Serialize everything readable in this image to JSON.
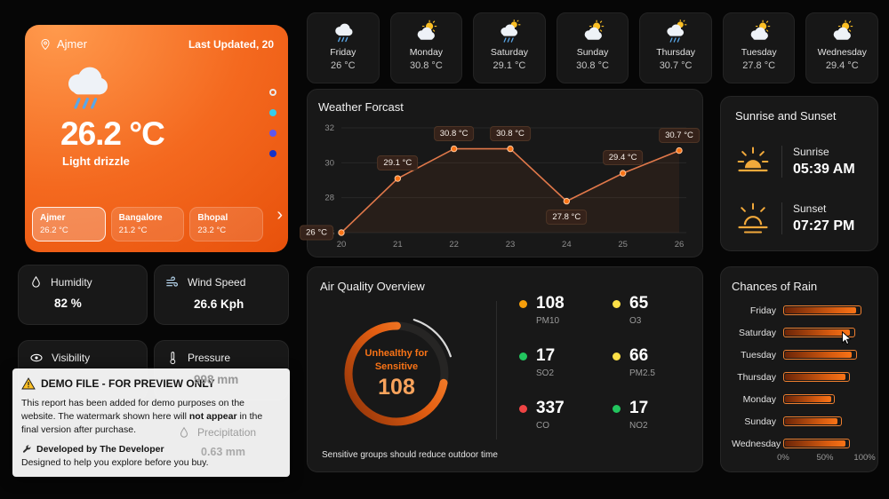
{
  "current": {
    "location": "Ajmer",
    "last_updated": "Last Updated, 20",
    "temperature": "26.2 °C",
    "condition": "Light drizzle",
    "chevron": "›",
    "cities": [
      {
        "name": "Ajmer",
        "temp": "26.2 °C"
      },
      {
        "name": "Bangalore",
        "temp": "21.2 °C"
      },
      {
        "name": "Bhopal",
        "temp": "23.2 °C"
      }
    ],
    "page_dots": [
      {
        "color": "transparent"
      },
      {
        "color": "#35cde9"
      },
      {
        "color": "#5f57ef"
      },
      {
        "color": "#1432c8"
      }
    ]
  },
  "stats": {
    "humidity": {
      "label": "Humidity",
      "value": "82 %"
    },
    "wind": {
      "label": "Wind Speed",
      "value": "26.6 Kph"
    },
    "visibility": {
      "label": "Visibility"
    },
    "pressure": {
      "label": "Pressure",
      "value": "998 mm"
    },
    "precipitation": {
      "label": "Precipitation",
      "value": "0.63 mm"
    }
  },
  "forecast_days": [
    {
      "day": "Friday",
      "temp": "26 °C",
      "icon": "rain"
    },
    {
      "day": "Monday",
      "temp": "30.8 °C",
      "icon": "partly"
    },
    {
      "day": "Saturday",
      "temp": "29.1 °C",
      "icon": "partly-rain"
    },
    {
      "day": "Sunday",
      "temp": "30.8 °C",
      "icon": "partly"
    },
    {
      "day": "Thursday",
      "temp": "30.7 °C",
      "icon": "partly-rain"
    },
    {
      "day": "Tuesday",
      "temp": "27.8 °C",
      "icon": "partly"
    },
    {
      "day": "Wednesday",
      "temp": "29.4 °C",
      "icon": "partly"
    }
  ],
  "chart_data": [
    {
      "type": "line",
      "title": "Weather Forcast",
      "x": [
        "20",
        "21",
        "22",
        "23",
        "24",
        "25",
        "26"
      ],
      "values": [
        26,
        29.1,
        30.8,
        30.8,
        27.8,
        29.4,
        30.7
      ],
      "point_labels": [
        "26 °C",
        "29.1 °C",
        "30.8 °C",
        "30.8 °C",
        "27.8 °C",
        "29.4 °C",
        "30.7 °C"
      ],
      "label_pos": [
        "left",
        "above",
        "above",
        "above",
        "below",
        "above",
        "above"
      ],
      "ylim": [
        26,
        32
      ],
      "yticks": [
        26,
        28,
        30,
        32
      ],
      "grid": true,
      "line_color": "#e0784a"
    },
    {
      "type": "bar",
      "title": "Chances of Rain",
      "orientation": "horizontal",
      "categories": [
        "Friday",
        "Saturday",
        "Tuesday",
        "Thursday",
        "Monday",
        "Sunday",
        "Wednesday"
      ],
      "values": [
        94,
        86,
        88,
        80,
        62,
        70,
        80
      ],
      "xlim": [
        0,
        100
      ],
      "xticks": [
        "0%",
        "50%",
        "100%"
      ],
      "bar_color": "#f97316"
    }
  ],
  "sun": {
    "title": "Sunrise and Sunset",
    "sunrise_label": "Sunrise",
    "sunrise_time": "05:39 AM",
    "sunset_label": "Sunset",
    "sunset_time": "07:27 PM"
  },
  "air_quality": {
    "title": "Air Quality Overview",
    "status_line1": "Unhealthy for",
    "status_line2": "Sensitive",
    "value": 108,
    "gauge_max": 150,
    "accent": "#f97316",
    "note": "Sensitive groups should reduce outdoor time",
    "metrics": [
      {
        "value": "108",
        "label": "PM10",
        "color": "#f59e0b"
      },
      {
        "value": "65",
        "label": "O3",
        "color": "#fde047"
      },
      {
        "value": "17",
        "label": "SO2",
        "color": "#22c55e"
      },
      {
        "value": "66",
        "label": "PM2.5",
        "color": "#fde047"
      },
      {
        "value": "337",
        "label": "CO",
        "color": "#ef4444"
      },
      {
        "value": "17",
        "label": "NO2",
        "color": "#22c55e"
      }
    ]
  },
  "demo_notice": {
    "title": "DEMO FILE - FOR PREVIEW ONLY",
    "body_1": "This report has been added for demo purposes on the website. The watermark shown here will ",
    "body_bold": "not appear",
    "body_2": " in the final version after purchase.",
    "dev_prefix": "Developed by ",
    "dev_name": "The Developer",
    "tagline": "Designed to help you explore before you buy."
  }
}
